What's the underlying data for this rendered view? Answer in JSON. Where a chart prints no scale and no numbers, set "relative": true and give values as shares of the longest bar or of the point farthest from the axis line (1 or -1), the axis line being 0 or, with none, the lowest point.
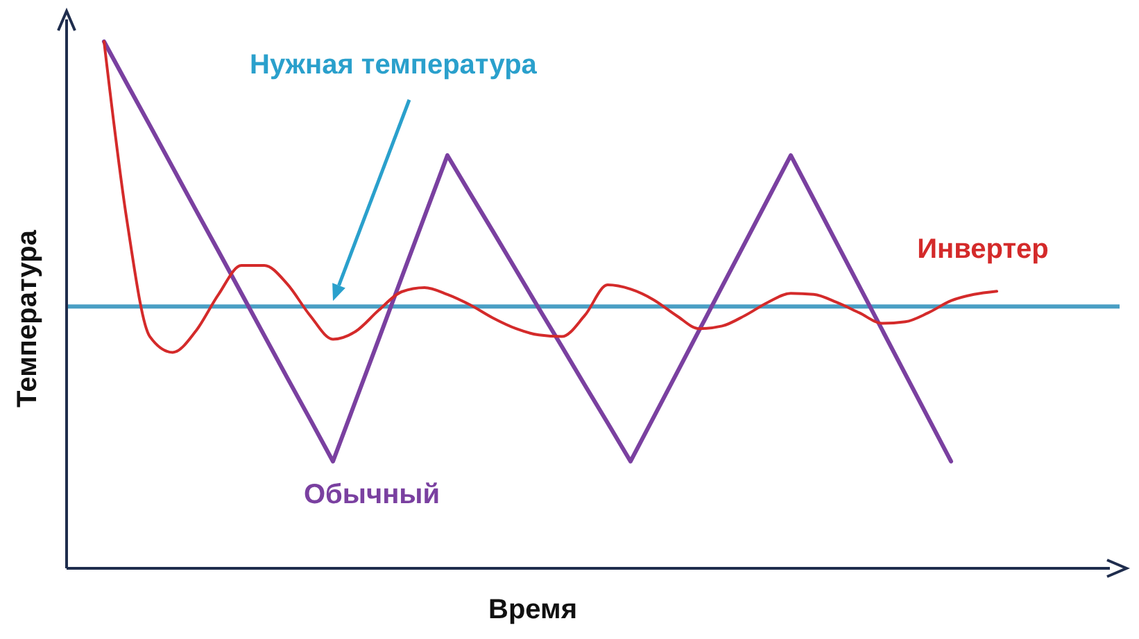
{
  "chart_data": {
    "type": "line",
    "relative": true,
    "xlabel": "Время",
    "ylabel": "Температура",
    "marker": "none",
    "line_style": "solid",
    "categories": [
      null,
      null,
      null,
      null,
      null,
      null,
      null,
      null,
      null,
      null,
      null,
      null,
      null,
      null,
      null,
      null,
      null,
      null,
      null,
      null,
      null,
      null,
      null,
      null,
      null,
      null,
      null,
      null,
      null,
      null,
      null,
      null,
      null,
      null,
      null,
      null,
      null,
      null,
      null,
      null
    ],
    "series": [
      {
        "name": "Обычный",
        "color": "#7a40a0",
        "values": [
          1.0,
          0.92,
          0.841,
          0.761,
          0.681,
          0.602,
          0.522,
          0.442,
          0.362,
          0.283,
          0.203,
          0.319,
          0.435,
          0.552,
          0.668,
          0.784,
          0.711,
          0.639,
          0.566,
          0.493,
          0.421,
          0.348,
          0.276,
          0.203,
          0.286,
          0.369,
          0.452,
          0.535,
          0.618,
          0.701,
          0.784,
          0.701,
          0.618,
          0.535,
          0.452,
          0.369,
          0.286,
          0.203,
          null,
          null
        ]
      },
      {
        "name": "Инвертер",
        "color": "#d42a2a",
        "values": [
          1.0,
          0.66,
          0.44,
          0.41,
          0.45,
          0.52,
          0.575,
          0.575,
          0.54,
          0.48,
          0.435,
          0.45,
          0.49,
          0.525,
          0.533,
          0.52,
          0.5,
          0.475,
          0.455,
          0.443,
          0.44,
          0.48,
          0.538,
          0.53,
          0.51,
          0.48,
          0.455,
          0.46,
          0.48,
          0.505,
          0.522,
          0.52,
          0.505,
          0.485,
          0.465,
          0.468,
          0.485,
          0.508,
          0.52,
          0.526
        ]
      }
    ],
    "ref_lines": [
      {
        "axis": "y",
        "value": 0.497,
        "color": "#4a9fc4"
      }
    ],
    "annotations": [
      "Нужная температура"
    ]
  }
}
